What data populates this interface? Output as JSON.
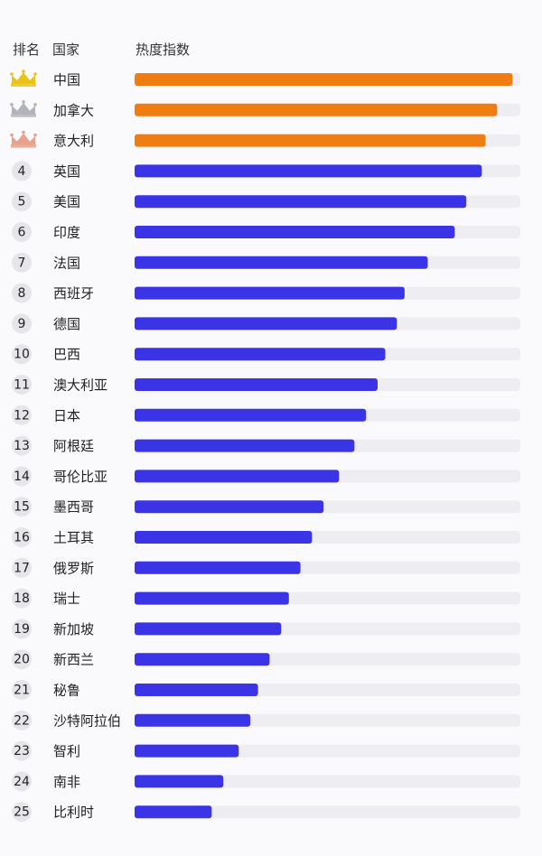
{
  "headers": {
    "rank": "排名",
    "country": "国家",
    "heat": "热度指数"
  },
  "colors": {
    "top3": "#f07d12",
    "others": "#3b33e6",
    "track": "#eeeef2",
    "rank_circle": "#e6e6ea",
    "crown_gold": "#e9c318",
    "crown_silver": "#b3b3bb",
    "crown_bronze": "#e6a28a"
  },
  "chart_data": {
    "type": "bar",
    "orientation": "horizontal",
    "xlim": [
      0,
      100
    ],
    "grid": false,
    "rows": [
      {
        "rank": 1,
        "crown": "gold-crown-icon",
        "country": "中国",
        "value": 98
      },
      {
        "rank": 2,
        "crown": "silver-crown-icon",
        "country": "加拿大",
        "value": 94
      },
      {
        "rank": 3,
        "crown": "bronze-crown-icon",
        "country": "意大利",
        "value": 91
      },
      {
        "rank": 4,
        "country": "英国",
        "value": 90
      },
      {
        "rank": 5,
        "country": "美国",
        "value": 86
      },
      {
        "rank": 6,
        "country": "印度",
        "value": 83
      },
      {
        "rank": 7,
        "country": "法国",
        "value": 76
      },
      {
        "rank": 8,
        "country": "西班牙",
        "value": 70
      },
      {
        "rank": 9,
        "country": "德国",
        "value": 68
      },
      {
        "rank": 10,
        "country": "巴西",
        "value": 65
      },
      {
        "rank": 11,
        "country": "澳大利亚",
        "value": 63
      },
      {
        "rank": 12,
        "country": "日本",
        "value": 60
      },
      {
        "rank": 13,
        "country": "阿根廷",
        "value": 57
      },
      {
        "rank": 14,
        "country": "哥伦比亚",
        "value": 53
      },
      {
        "rank": 15,
        "country": "墨西哥",
        "value": 49
      },
      {
        "rank": 16,
        "country": "土耳其",
        "value": 46
      },
      {
        "rank": 17,
        "country": "俄罗斯",
        "value": 43
      },
      {
        "rank": 18,
        "country": "瑞士",
        "value": 40
      },
      {
        "rank": 19,
        "country": "新加坡",
        "value": 38
      },
      {
        "rank": 20,
        "country": "新西兰",
        "value": 35
      },
      {
        "rank": 21,
        "country": "秘鲁",
        "value": 32
      },
      {
        "rank": 22,
        "country": "沙特阿拉伯",
        "value": 30
      },
      {
        "rank": 23,
        "country": "智利",
        "value": 27
      },
      {
        "rank": 24,
        "country": "南非",
        "value": 23
      },
      {
        "rank": 25,
        "country": "比利时",
        "value": 20
      }
    ]
  }
}
